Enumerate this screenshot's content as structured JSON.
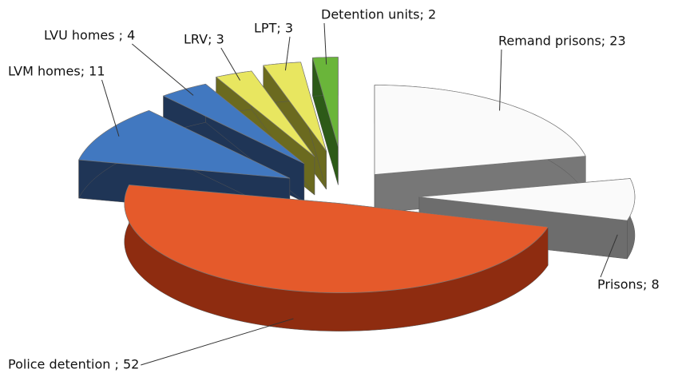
{
  "chart_data": {
    "type": "pie3d",
    "values": [
      23,
      8,
      52,
      11,
      4,
      3,
      3,
      2
    ],
    "value_labels": [
      "Remand prisons; 23",
      "Prisons; 8",
      "Police detention ; 52",
      "LVM homes; 11",
      "LVU homes ; 4",
      "LRV; 3",
      "LPT; 3",
      "Detention units; 2"
    ],
    "colors": [
      "#fafafa",
      "#fafafa",
      "#e55a2b",
      "#4178c0",
      "#4178c0",
      "#e8e660",
      "#e8e660",
      "#6ab53a"
    ]
  }
}
